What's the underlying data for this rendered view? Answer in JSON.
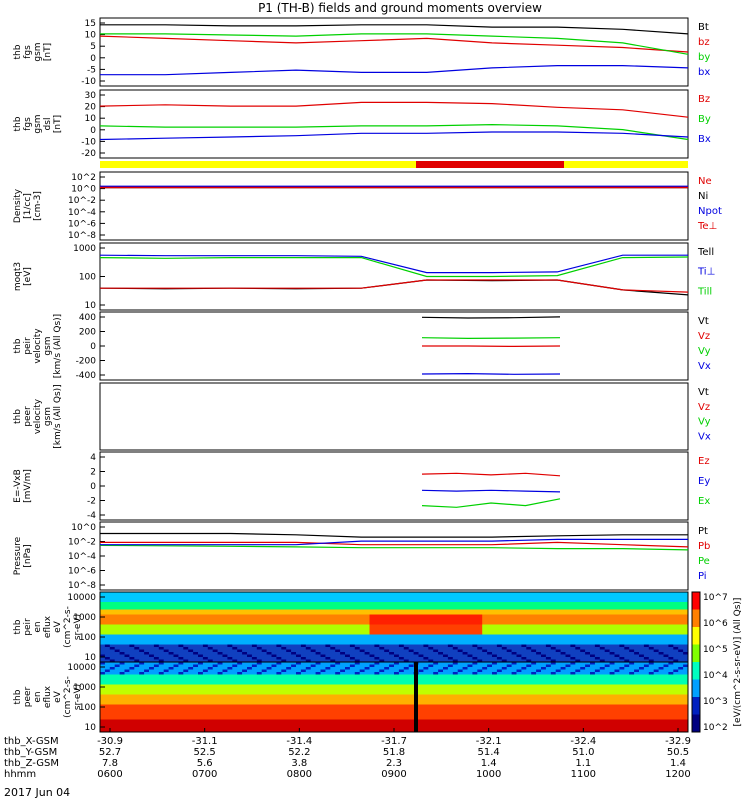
{
  "title": "P1 (TH-B) fields and ground moments overview",
  "date_label": "2017 Jun 04",
  "colors": {
    "black": "#000000",
    "red": "#e00000",
    "green": "#00d000",
    "blue": "#0000e0",
    "yellow": "#ffff00",
    "barred": "#e00000"
  },
  "chart_data": [
    {
      "type": "line",
      "ylabel": [
        "thb",
        "fgs",
        "gsm",
        "[nT]"
      ],
      "ylim": [
        -15,
        15
      ],
      "ticks": [
        15,
        10,
        5,
        0,
        -5,
        -10
      ],
      "series": [
        {
          "name": "Bt",
          "color": "black",
          "values": [
            12,
            12,
            11.5,
            11.5,
            12,
            12,
            11,
            11,
            10,
            8
          ]
        },
        {
          "name": "bz",
          "color": "red",
          "values": [
            7,
            6,
            5,
            4,
            5,
            6,
            4,
            3,
            2,
            0
          ]
        },
        {
          "name": "by",
          "color": "green",
          "values": [
            8,
            8,
            7.5,
            7,
            8,
            8,
            7,
            6,
            4,
            -1
          ]
        },
        {
          "name": "bx",
          "color": "blue",
          "values": [
            -10,
            -10,
            -9,
            -8,
            -9,
            -9,
            -7,
            -6,
            -6,
            -7
          ]
        }
      ]
    },
    {
      "type": "line",
      "ylabel": [
        "thb",
        "fgs",
        "gsm",
        "dsl",
        "[nT]"
      ],
      "ylim": [
        -25,
        30
      ],
      "ticks": [
        30,
        20,
        10,
        0,
        -10,
        -20
      ],
      "series": [
        {
          "name": "Bz",
          "color": "red",
          "values": [
            17,
            18,
            17,
            17,
            20,
            20,
            19,
            16,
            14,
            8
          ]
        },
        {
          "name": "By",
          "color": "green",
          "values": [
            1,
            0,
            0,
            0,
            1,
            1,
            2,
            1,
            -2,
            -10
          ]
        },
        {
          "name": "Bx",
          "color": "blue",
          "values": [
            -10,
            -9,
            -8,
            -7,
            -5,
            -5,
            -4,
            -4,
            -5,
            -8
          ]
        }
      ]
    },
    {
      "type": "line",
      "scale": "log",
      "ylabel": [
        "Density",
        "[1/cc]",
        "[cm-3]"
      ],
      "ylim": [
        -9,
        2
      ],
      "ticks": [
        "10^2",
        "10^0",
        "10^-2",
        "10^-4",
        "10^-6",
        "10^-8"
      ],
      "series": [
        {
          "name": "Ne",
          "color": "red",
          "values": [
            0.4,
            0.4,
            0.4,
            0.4,
            0.4,
            0.4,
            0.4,
            0.4,
            0.4,
            0.4
          ]
        },
        {
          "name": "Ni",
          "color": "black",
          "values": [
            0.3,
            0.3,
            0.3,
            0.3,
            0.3,
            0.3,
            0.3,
            0.3,
            0.3,
            0.3
          ]
        },
        {
          "name": "Npot",
          "color": "blue",
          "values": [
            0.5,
            0.5,
            0.5,
            0.5,
            0.5,
            0.5,
            0.5,
            0.5,
            0.5,
            0.5
          ]
        },
        {
          "name": "Te⊥",
          "color": "red",
          "values": [
            0.3,
            0.3,
            0.3,
            0.3,
            0.3,
            0.3,
            0.3,
            0.3,
            0.3,
            0.3
          ]
        }
      ]
    },
    {
      "type": "line",
      "scale": "log",
      "ylabel": [
        "moqt3",
        "[eV]"
      ],
      "ylim": [
        0.5,
        3.5
      ],
      "ticks": [
        "1000",
        "100",
        "10"
      ],
      "series": [
        {
          "name": "Tell",
          "color": "black",
          "values": [
            30,
            28,
            30,
            28,
            30,
            70,
            65,
            70,
            25,
            15
          ]
        },
        {
          "name": "Ti⊥",
          "color": "blue",
          "values": [
            900,
            850,
            850,
            850,
            800,
            150,
            150,
            160,
            900,
            900
          ]
        },
        {
          "name": "Till",
          "color": "green",
          "values": [
            700,
            650,
            700,
            700,
            700,
            100,
            100,
            110,
            700,
            750
          ]
        },
        {
          "name": "Te⊥",
          "color": "red",
          "values": [
            30,
            30,
            30,
            30,
            30,
            70,
            70,
            70,
            25,
            20
          ]
        }
      ]
    },
    {
      "type": "line",
      "ylabel": [
        "thb",
        "peir",
        "velocity",
        "gsm",
        "[km/s (All Qs)]"
      ],
      "ylim": [
        -450,
        450
      ],
      "ticks": [
        400,
        200,
        0,
        -200,
        -400
      ],
      "series": [
        {
          "name": "Vt",
          "color": "black",
          "values": [
            380,
            370,
            375,
            385
          ]
        },
        {
          "name": "Vz",
          "color": "red",
          "values": [
            0,
            0,
            -5,
            0
          ]
        },
        {
          "name": "Vy",
          "color": "green",
          "values": [
            110,
            100,
            105,
            110
          ]
        },
        {
          "name": "Vx",
          "color": "blue",
          "values": [
            -370,
            -365,
            -375,
            -370
          ]
        }
      ]
    },
    {
      "type": "line",
      "ylabel": [
        "thb",
        "peer",
        "velocity",
        "gsm",
        "[km/s (All Qs)]"
      ],
      "ylim": [
        -1,
        1
      ],
      "ticks": [],
      "series": [
        {
          "name": "Vt",
          "color": "black",
          "values": []
        },
        {
          "name": "Vz",
          "color": "red",
          "values": []
        },
        {
          "name": "Vy",
          "color": "green",
          "values": []
        },
        {
          "name": "Vx",
          "color": "blue",
          "values": []
        }
      ]
    },
    {
      "type": "line",
      "ylabel": [
        "E=-VxB",
        "[mV/m]"
      ],
      "ylim": [
        -4,
        4
      ],
      "ticks": [
        4,
        2,
        0,
        -2,
        -4
      ],
      "series": [
        {
          "name": "Ez",
          "color": "red",
          "values": [
            1.4,
            1.5,
            1.3,
            1.5,
            1.2
          ]
        },
        {
          "name": "Ey",
          "color": "blue",
          "values": [
            -0.5,
            -0.6,
            -0.5,
            -0.6,
            -0.7
          ]
        },
        {
          "name": "Ex",
          "color": "green",
          "values": [
            -2.3,
            -2.5,
            -2,
            -2.3,
            -1.5
          ]
        }
      ]
    },
    {
      "type": "line",
      "scale": "log",
      "ylabel": [
        "Pressure",
        "[nPa]"
      ],
      "ylim": [
        -8,
        1
      ],
      "ticks": [
        "10^0",
        "10^-2",
        "10^-4",
        "10^-6",
        "10^-8"
      ],
      "series": [
        {
          "name": "Pt",
          "color": "black",
          "values": [
            0.3,
            0.3,
            0.3,
            0.2,
            0.1,
            0.1,
            0.1,
            0.15,
            0.2,
            0.2
          ]
        },
        {
          "name": "Pb",
          "color": "red",
          "values": [
            0.02,
            0.02,
            0.02,
            0.02,
            0.01,
            0.01,
            0.01,
            0.02,
            0.01,
            0.005
          ]
        },
        {
          "name": "Pe",
          "color": "green",
          "values": [
            0.008,
            0.007,
            0.006,
            0.005,
            0.004,
            0.004,
            0.004,
            0.003,
            0.003,
            0.002
          ]
        },
        {
          "name": "Pi",
          "color": "blue",
          "values": [
            0.01,
            0.01,
            0.01,
            0.01,
            0.03,
            0.03,
            0.03,
            0.05,
            0.05,
            0.05
          ]
        }
      ]
    },
    {
      "type": "heatmap",
      "ylabel": [
        "thb",
        "peir",
        "en",
        "eflux",
        "eV",
        "(cm^2-s-",
        "sr-eV)"
      ],
      "ylim": [
        5,
        30000
      ],
      "ticks": [
        "10000",
        "1000",
        "100",
        "10"
      ]
    },
    {
      "type": "heatmap",
      "ylabel": [
        "thb",
        "peer",
        "en",
        "eflux",
        "eV",
        "(cm^2-s-",
        "sr-eV)"
      ],
      "ylim": [
        5,
        30000
      ],
      "ticks": [
        "10000",
        "1000",
        "100",
        "10"
      ],
      "colorbar": {
        "label": "[eV/(cm^2-s-sr-eV)] (All Qs)]",
        "ticks": [
          "10^7",
          "10^6",
          "10^5",
          "10^4",
          "10^3",
          "10^2"
        ]
      }
    }
  ],
  "xaxis": {
    "rows": [
      {
        "label": "thb_X-GSM",
        "values": [
          "-30.9",
          "-31.1",
          "-31.4",
          "-31.7",
          "-32.1",
          "-32.4",
          "-32.9"
        ]
      },
      {
        "label": "thb_Y-GSM",
        "values": [
          "52.7",
          "52.5",
          "52.2",
          "51.8",
          "51.4",
          "51.0",
          "50.5"
        ]
      },
      {
        "label": "thb_Z-GSM",
        "values": [
          "7.8",
          "5.6",
          "3.8",
          "2.3",
          "1.4",
          "1.1",
          "1.4"
        ]
      },
      {
        "label": "hhmm",
        "values": [
          "0600",
          "0700",
          "0800",
          "0900",
          "1000",
          "1100",
          "1200"
        ]
      }
    ]
  },
  "panel_labels": [
    [
      "Bt",
      "bz",
      "by",
      "bx"
    ],
    [
      "Bz",
      "By",
      "Bx"
    ],
    [
      "Ne",
      "Ni",
      "Npot",
      "Te⊥"
    ],
    [
      "Tell",
      "Ti⊥",
      "Till"
    ],
    [
      "Vt",
      "Vz",
      "Vy",
      "Vx"
    ],
    [
      "Vt",
      "Vz",
      "Vy",
      "Vx"
    ],
    [
      "Ez",
      "Ey",
      "Ex"
    ],
    [
      "Pt",
      "Pb",
      "Pe",
      "Pi"
    ]
  ]
}
